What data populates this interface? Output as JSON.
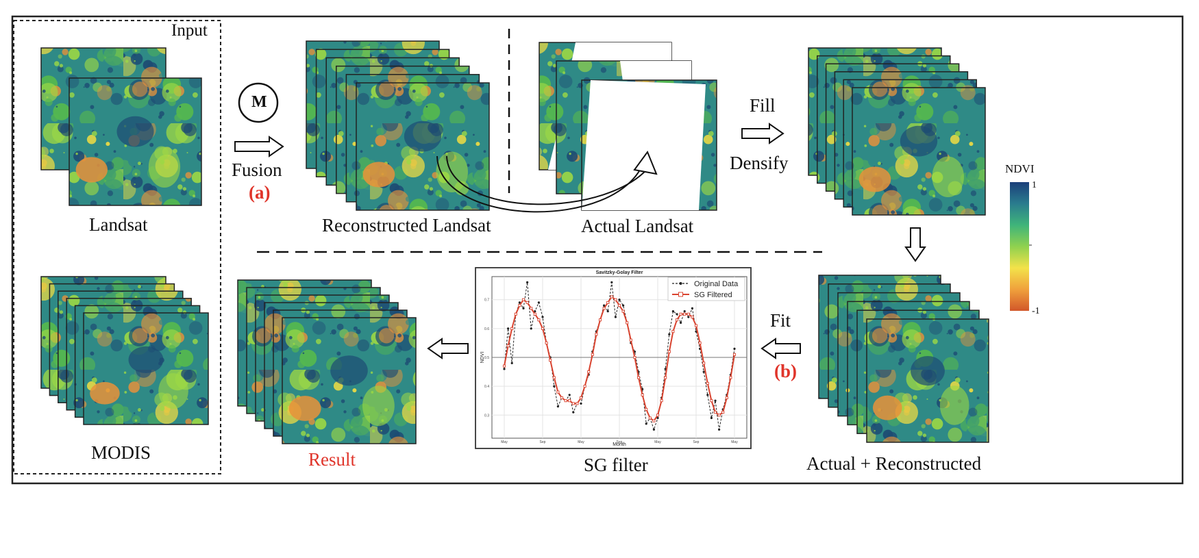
{
  "labels": {
    "input": "Input",
    "landsat": "Landsat",
    "modis": "MODIS",
    "fusion_symbol": "M",
    "fusion": "Fusion",
    "step_a": "(a)",
    "reconstructed": "Reconstructed Landsat",
    "actual": "Actual Landsat",
    "fill": "Fill",
    "densify": "Densify",
    "combined": "Actual  + Reconstructed",
    "fit": "Fit",
    "step_b": "(b)",
    "sg_filter": "SG filter",
    "result": "Result"
  },
  "colorbar": {
    "title": "NDVI",
    "max_label": "1",
    "min_label": "-1",
    "colors": [
      "#1b3f7a",
      "#2a7c8e",
      "#3fb47a",
      "#8fd14f",
      "#f3e24a",
      "#f0a13c",
      "#d2572a"
    ]
  },
  "map_palette": {
    "deep": "#1d4b73",
    "teal": "#2f8a86",
    "green": "#55b84f",
    "lime": "#9cd845",
    "yellow": "#e9d944",
    "orange": "#e8923a",
    "red": "#cf4d2a"
  },
  "chart_data": {
    "type": "line",
    "title": "Savitzky-Golay Filter",
    "xlabel": "Month",
    "ylabel": "NDVI",
    "x_ticks": [
      "May",
      "Sep",
      "May",
      "Sep",
      "May",
      "Sep",
      "May"
    ],
    "y_ticks": [
      "0.3",
      "0.4",
      "0.5",
      "0.6",
      "0.7"
    ],
    "ylim": [
      0.22,
      0.78
    ],
    "reference_y": 0.5,
    "grid": true,
    "legend_position": "top-right",
    "series": [
      {
        "name": "Original Data",
        "style": "dashed-dots",
        "color": "#222222",
        "values": [
          0.46,
          0.6,
          0.48,
          0.65,
          0.69,
          0.67,
          0.76,
          0.6,
          0.66,
          0.69,
          0.64,
          0.55,
          0.5,
          0.4,
          0.33,
          0.36,
          0.35,
          0.37,
          0.31,
          0.34,
          0.34,
          0.4,
          0.44,
          0.52,
          0.59,
          0.63,
          0.68,
          0.66,
          0.76,
          0.64,
          0.7,
          0.68,
          0.62,
          0.55,
          0.52,
          0.45,
          0.39,
          0.27,
          0.29,
          0.25,
          0.29,
          0.36,
          0.46,
          0.58,
          0.66,
          0.65,
          0.62,
          0.66,
          0.64,
          0.67,
          0.59,
          0.53,
          0.45,
          0.37,
          0.29,
          0.35,
          0.25,
          0.32,
          0.37,
          0.44,
          0.53
        ]
      },
      {
        "name": "SG Filtered",
        "style": "solid-squares",
        "color": "#d9432f",
        "values": [
          0.47,
          0.54,
          0.6,
          0.65,
          0.68,
          0.7,
          0.69,
          0.67,
          0.65,
          0.63,
          0.6,
          0.55,
          0.49,
          0.43,
          0.38,
          0.36,
          0.35,
          0.35,
          0.34,
          0.34,
          0.36,
          0.4,
          0.45,
          0.51,
          0.58,
          0.63,
          0.67,
          0.69,
          0.71,
          0.7,
          0.68,
          0.66,
          0.62,
          0.56,
          0.5,
          0.43,
          0.37,
          0.32,
          0.29,
          0.28,
          0.3,
          0.35,
          0.43,
          0.52,
          0.59,
          0.63,
          0.65,
          0.65,
          0.65,
          0.64,
          0.61,
          0.55,
          0.48,
          0.41,
          0.35,
          0.31,
          0.3,
          0.31,
          0.36,
          0.43,
          0.51
        ]
      }
    ]
  }
}
